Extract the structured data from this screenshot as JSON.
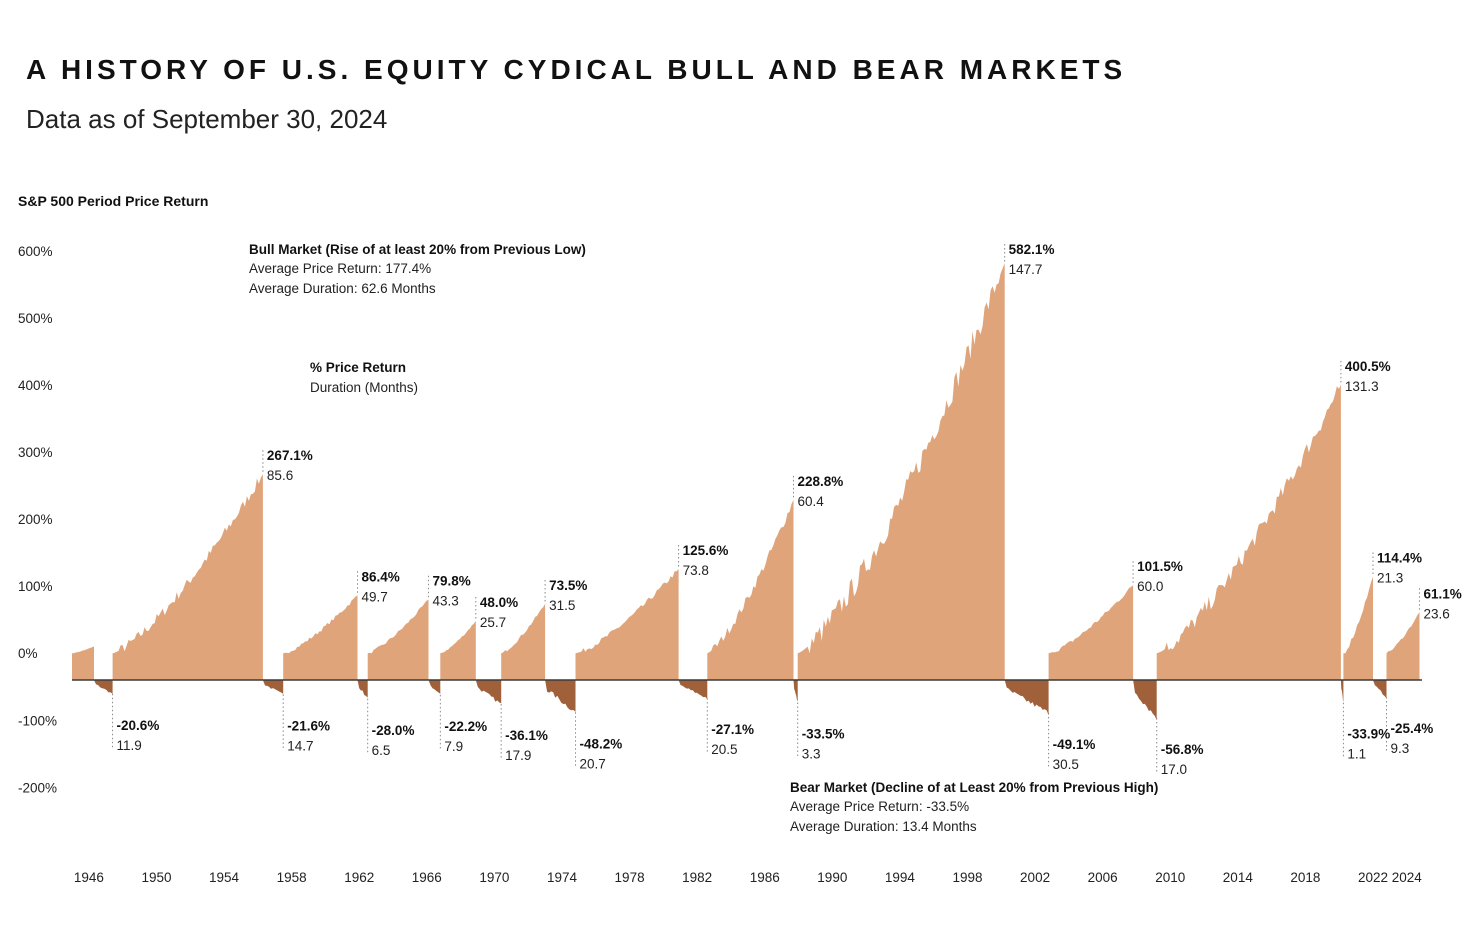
{
  "header": {
    "title": "A HISTORY OF U.S. EQUITY CYDICAL BULL AND BEAR MARKETS",
    "subtitle": "Data as of September 30, 2024"
  },
  "colors": {
    "bull": "#dfa47a",
    "bear": "#a0603a",
    "zero_line": "#3a3a3a",
    "guide": "#8a8a8a",
    "text": "#111111"
  },
  "chart_data": {
    "type": "area",
    "ylabel": "S&P 500 Period Price Return",
    "ylim": [
      -200,
      600
    ],
    "yticks": [
      {
        "value": 600,
        "label": "600%"
      },
      {
        "value": 500,
        "label": "500%"
      },
      {
        "value": 400,
        "label": "400%"
      },
      {
        "value": 300,
        "label": "300%"
      },
      {
        "value": 200,
        "label": "200%"
      },
      {
        "value": 100,
        "label": "100%"
      },
      {
        "value": 0,
        "label": "0%"
      },
      {
        "value": -100,
        "label": "-100%"
      },
      {
        "value": -200,
        "label": "-200%"
      }
    ],
    "x_range": [
      1945,
      2024.9
    ],
    "xticks": [
      1946,
      1950,
      1954,
      1958,
      1962,
      1966,
      1970,
      1974,
      1978,
      1982,
      1986,
      1990,
      1994,
      1998,
      2002,
      2006,
      2010,
      2014,
      2018,
      2022,
      2024
    ],
    "bull_legend": {
      "title": "Bull Market (Rise of at least 20% from Previous Low)",
      "line1": "Average Price Return: 177.4%",
      "line2": "Average Duration: 62.6 Months"
    },
    "bear_legend": {
      "title": "Bear Market (Decline of at Least 20% from Previous High)",
      "line1": "Average Price Return: -33.5%",
      "line2": "Average Duration: 13.4 Months"
    },
    "key_legend": {
      "label1": "% Price Return",
      "label2": "Duration (Months)"
    },
    "periods": [
      {
        "type": "bull",
        "start": 1945.0,
        "end": 1946.3,
        "ret": null,
        "months": null,
        "peak": 10
      },
      {
        "type": "bear",
        "start": 1946.3,
        "end": 1947.4,
        "ret": "-20.6%",
        "months": "11.9",
        "peak": -20.6
      },
      {
        "type": "bull",
        "start": 1947.4,
        "end": 1956.3,
        "ret": "267.1%",
        "months": "85.6",
        "peak": 267.1
      },
      {
        "type": "bear",
        "start": 1956.3,
        "end": 1957.5,
        "ret": "-21.6%",
        "months": "14.7",
        "peak": -21.6
      },
      {
        "type": "bull",
        "start": 1957.5,
        "end": 1961.9,
        "ret": "86.4%",
        "months": "49.7",
        "peak": 86.4
      },
      {
        "type": "bear",
        "start": 1961.9,
        "end": 1962.5,
        "ret": "-28.0%",
        "months": "6.5",
        "peak": -28.0
      },
      {
        "type": "bull",
        "start": 1962.5,
        "end": 1966.1,
        "ret": "79.8%",
        "months": "43.3",
        "peak": 79.8
      },
      {
        "type": "bear",
        "start": 1966.1,
        "end": 1966.8,
        "ret": "-22.2%",
        "months": "7.9",
        "peak": -22.2
      },
      {
        "type": "bull",
        "start": 1966.8,
        "end": 1968.9,
        "ret": "48.0%",
        "months": "25.7",
        "peak": 48.0
      },
      {
        "type": "bear",
        "start": 1968.9,
        "end": 1970.4,
        "ret": "-36.1%",
        "months": "17.9",
        "peak": -36.1
      },
      {
        "type": "bull",
        "start": 1970.4,
        "end": 1973.0,
        "ret": "73.5%",
        "months": "31.5",
        "peak": 73.5
      },
      {
        "type": "bear",
        "start": 1973.0,
        "end": 1974.8,
        "ret": "-48.2%",
        "months": "20.7",
        "peak": -48.2
      },
      {
        "type": "bull",
        "start": 1974.8,
        "end": 1980.9,
        "ret": "125.6%",
        "months": "73.8",
        "peak": 125.6
      },
      {
        "type": "bear",
        "start": 1980.9,
        "end": 1982.6,
        "ret": "-27.1%",
        "months": "20.5",
        "peak": -27.1
      },
      {
        "type": "bull",
        "start": 1982.6,
        "end": 1987.7,
        "ret": "228.8%",
        "months": "60.4",
        "peak": 228.8
      },
      {
        "type": "bear",
        "start": 1987.7,
        "end": 1987.95,
        "ret": "-33.5%",
        "months": "3.3",
        "peak": -33.5
      },
      {
        "type": "bull",
        "start": 1987.95,
        "end": 2000.2,
        "ret": "582.1%",
        "months": "147.7",
        "peak": 582.1
      },
      {
        "type": "bear",
        "start": 2000.2,
        "end": 2002.8,
        "ret": "-49.1%",
        "months": "30.5",
        "peak": -49.1
      },
      {
        "type": "bull",
        "start": 2002.8,
        "end": 2007.8,
        "ret": "101.5%",
        "months": "60.0",
        "peak": 101.5
      },
      {
        "type": "bear",
        "start": 2007.8,
        "end": 2009.2,
        "ret": "-56.8%",
        "months": "17.0",
        "peak": -56.8
      },
      {
        "type": "bull",
        "start": 2009.2,
        "end": 2020.1,
        "ret": "400.5%",
        "months": "131.3",
        "peak": 400.5
      },
      {
        "type": "bear",
        "start": 2020.1,
        "end": 2020.25,
        "ret": "-33.9%",
        "months": "1.1",
        "peak": -33.9
      },
      {
        "type": "bull",
        "start": 2020.25,
        "end": 2022.0,
        "ret": "114.4%",
        "months": "21.3",
        "peak": 114.4
      },
      {
        "type": "bear",
        "start": 2022.0,
        "end": 2022.8,
        "ret": "-25.4%",
        "months": "9.3",
        "peak": -25.4
      },
      {
        "type": "bull",
        "start": 2022.8,
        "end": 2024.75,
        "ret": "61.1%",
        "months": "23.6",
        "peak": 61.1
      }
    ]
  }
}
